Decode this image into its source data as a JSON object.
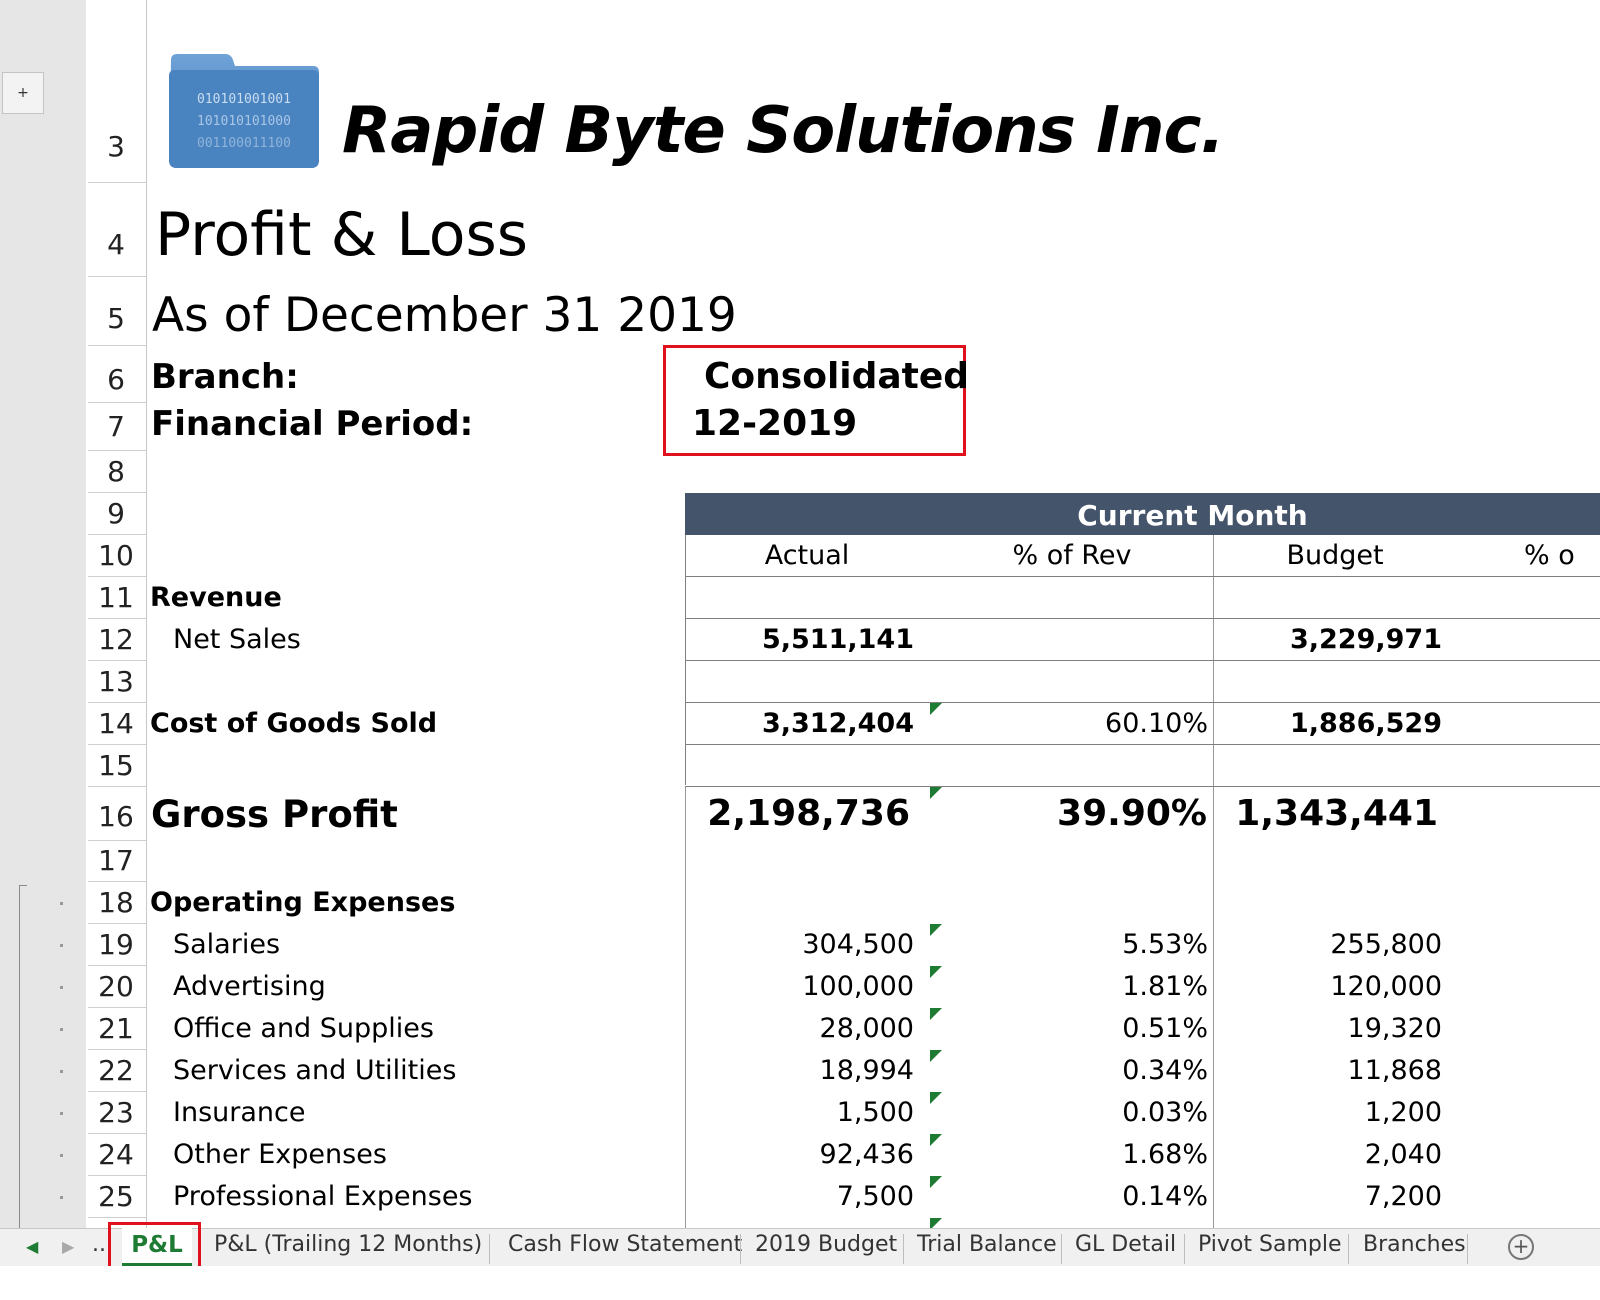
{
  "company": {
    "name": "Rapid Byte Solutions Inc.",
    "logo_binary": [
      "010101001001",
      "101010101000",
      "001100011100"
    ]
  },
  "report": {
    "title": "Profit & Loss",
    "date": "As of December 31 2019"
  },
  "params": {
    "branch_label": "Branch:",
    "branch_value": "Consolidated",
    "period_label": "Financial Period:",
    "period_value": "12-2019"
  },
  "row_numbers": [
    "3",
    "4",
    "5",
    "6",
    "7",
    "8",
    "9",
    "10",
    "11",
    "12",
    "13",
    "14",
    "15",
    "16",
    "17",
    "18",
    "19",
    "20",
    "21",
    "22",
    "23",
    "24",
    "25"
  ],
  "outline": {
    "expand_symbol": "+"
  },
  "header": {
    "group_title": "Current Month",
    "col_actual": "Actual",
    "col_pct_rev": "% of Rev",
    "col_budget": "Budget",
    "col_pct_partial": "% o"
  },
  "rows": {
    "revenue_label": "Revenue",
    "net_sales": {
      "label": "Net Sales",
      "actual": "5,511,141",
      "budget": "3,229,971"
    },
    "cogs": {
      "label": "Cost of Goods Sold",
      "actual": "3,312,404",
      "pct": "60.10%",
      "budget": "1,886,529"
    },
    "gross_profit": {
      "label": "Gross Profit",
      "actual": "2,198,736",
      "pct": "39.90%",
      "budget": "1,343,441"
    },
    "opex_label": "Operating Expenses",
    "expenses": [
      {
        "label": "Salaries",
        "actual": "304,500",
        "pct": "5.53%",
        "budget": "255,800"
      },
      {
        "label": "Advertising",
        "actual": "100,000",
        "pct": "1.81%",
        "budget": "120,000"
      },
      {
        "label": "Office and Supplies",
        "actual": "28,000",
        "pct": "0.51%",
        "budget": "19,320"
      },
      {
        "label": "Services and Utilities",
        "actual": "18,994",
        "pct": "0.34%",
        "budget": "11,868"
      },
      {
        "label": "Insurance",
        "actual": "1,500",
        "pct": "0.03%",
        "budget": "1,200"
      },
      {
        "label": "Other Expenses",
        "actual": "92,436",
        "pct": "1.68%",
        "budget": "2,040"
      },
      {
        "label": "Professional Expenses",
        "actual": "7,500",
        "pct": "0.14%",
        "budget": "7,200"
      }
    ]
  },
  "sheet_tabs": {
    "nav_prev": "◀",
    "nav_next": "▶",
    "more": "...",
    "tabs": [
      "P&L",
      "P&L (Trailing 12 Months)",
      "Cash Flow Statement",
      "2019 Budget",
      "Trial Balance",
      "GL Detail",
      "Pivot Sample",
      "Branches"
    ],
    "add": "+"
  },
  "colors": {
    "header_band": "#44546a",
    "highlight_box": "#e0101c",
    "active_tab": "#1e7b34",
    "logo_folder": "#3f7fbf"
  }
}
